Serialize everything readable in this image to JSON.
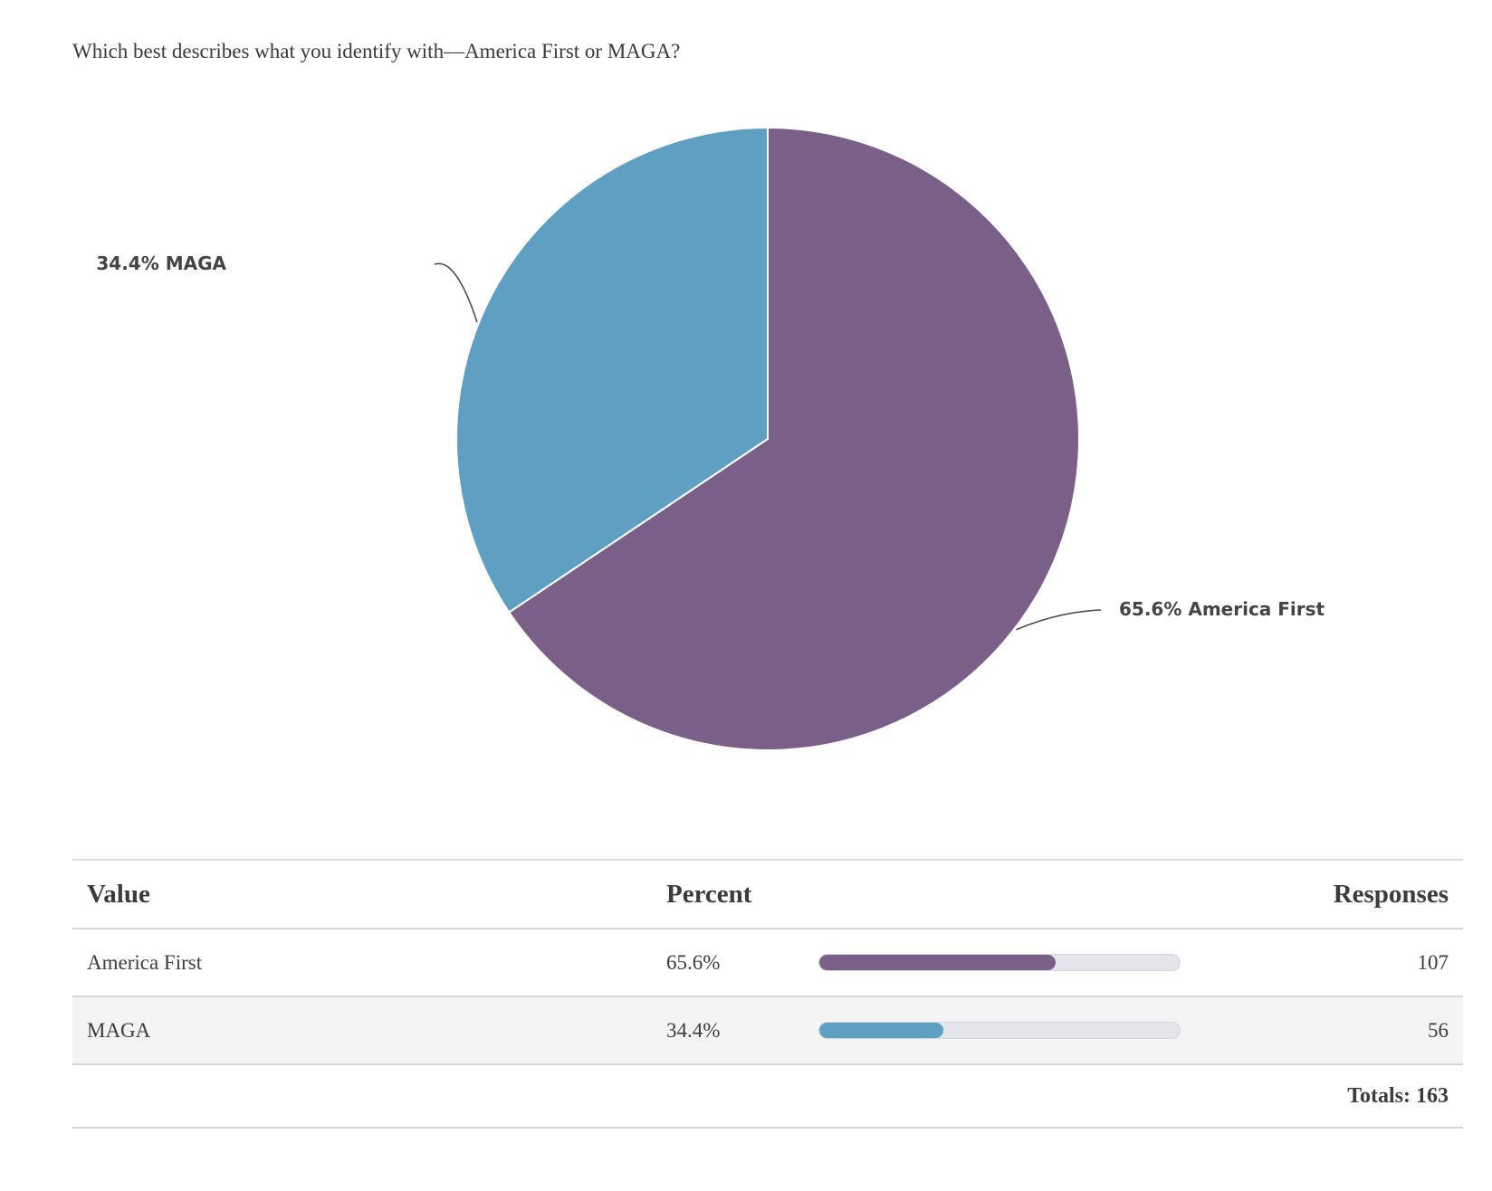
{
  "question": "Which best describes what you identify with—America First or MAGA?",
  "chart_data": {
    "type": "pie",
    "slices": [
      {
        "label": "America First",
        "percent": 65.6,
        "responses": 107,
        "color": "#7a5f89",
        "display_label": "65.6% America First"
      },
      {
        "label": "MAGA",
        "percent": 34.4,
        "responses": 56,
        "color": "#5e9fc2",
        "display_label": "34.4% MAGA"
      }
    ]
  },
  "table": {
    "headers": {
      "value": "Value",
      "percent": "Percent",
      "responses": "Responses"
    },
    "rows": [
      {
        "value": "America First",
        "percent_text": "65.6%",
        "percent": 65.6,
        "responses": "107",
        "color": "#7a5f89"
      },
      {
        "value": "MAGA",
        "percent_text": "34.4%",
        "percent": 34.4,
        "responses": "56",
        "color": "#5e9fc2"
      }
    ],
    "totals": "Totals: 163"
  }
}
